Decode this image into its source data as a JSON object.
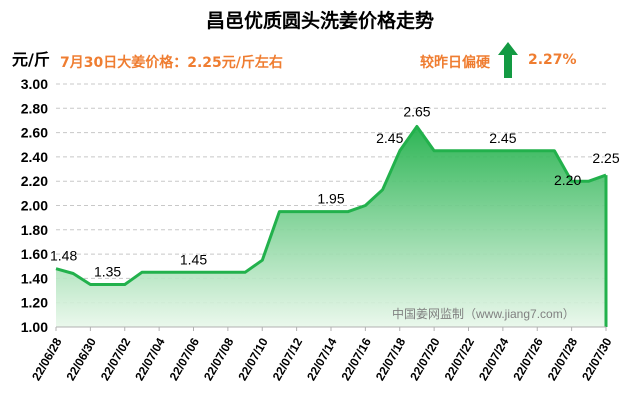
{
  "header": {
    "title": "昌邑优质圆头洗姜价格走势",
    "unit": "元/斤",
    "price_note": "7月30日大姜价格：2.25元/斤左右",
    "compare_label": "较昨日偏硬",
    "change_pct": "2.27%",
    "change_direction": "up",
    "watermark": "中国姜网监制（www.jiang7.com）"
  },
  "colors": {
    "line": "#22b14c",
    "fill_top": "#22b14c",
    "fill_bottom": "#e8f7ea",
    "arrow": "#139a43",
    "highlight_text": "#ef7d31"
  },
  "chart_data": {
    "type": "area",
    "title": "昌邑优质圆头洗姜价格走势",
    "ylabel": "元/斤",
    "ylim": [
      1.0,
      3.0
    ],
    "yticks": [
      "1.00",
      "1.20",
      "1.40",
      "1.60",
      "1.80",
      "2.00",
      "2.20",
      "2.40",
      "2.60",
      "2.80",
      "3.00"
    ],
    "x": [
      "22/06/28",
      "22/06/29",
      "22/06/30",
      "22/07/01",
      "22/07/02",
      "22/07/03",
      "22/07/04",
      "22/07/05",
      "22/07/06",
      "22/07/07",
      "22/07/08",
      "22/07/09",
      "22/07/10",
      "22/07/11",
      "22/07/12",
      "22/07/13",
      "22/07/14",
      "22/07/15",
      "22/07/16",
      "22/07/17",
      "22/07/18",
      "22/07/19",
      "22/07/20",
      "22/07/21",
      "22/07/22",
      "22/07/23",
      "22/07/24",
      "22/07/25",
      "22/07/26",
      "22/07/27",
      "22/07/28",
      "22/07/29",
      "22/07/30"
    ],
    "xtick_labels": [
      "22/06/28",
      "22/06/30",
      "22/07/02",
      "22/07/04",
      "22/07/06",
      "22/07/08",
      "22/07/10",
      "22/07/12",
      "22/07/14",
      "22/07/16",
      "22/07/18",
      "22/07/20",
      "22/07/22",
      "22/07/24",
      "22/07/26",
      "22/07/28",
      "22/07/30"
    ],
    "values": [
      1.48,
      1.44,
      1.35,
      1.35,
      1.35,
      1.45,
      1.45,
      1.45,
      1.45,
      1.45,
      1.45,
      1.45,
      1.55,
      1.95,
      1.95,
      1.95,
      1.95,
      1.95,
      2.0,
      2.13,
      2.45,
      2.65,
      2.45,
      2.45,
      2.45,
      2.45,
      2.45,
      2.45,
      2.45,
      2.45,
      2.2,
      2.2,
      2.25
    ],
    "annotations": [
      {
        "index": 0,
        "text": "1.48"
      },
      {
        "index": 3,
        "text": "1.35"
      },
      {
        "index": 8,
        "text": "1.45"
      },
      {
        "index": 16,
        "text": "1.95"
      },
      {
        "index": 20,
        "text": "2.45"
      },
      {
        "index": 21,
        "text": "2.65"
      },
      {
        "index": 26,
        "text": "2.45"
      },
      {
        "index": 30,
        "text": "2.20"
      },
      {
        "index": 32,
        "text": "2.25"
      }
    ],
    "grid": true
  }
}
